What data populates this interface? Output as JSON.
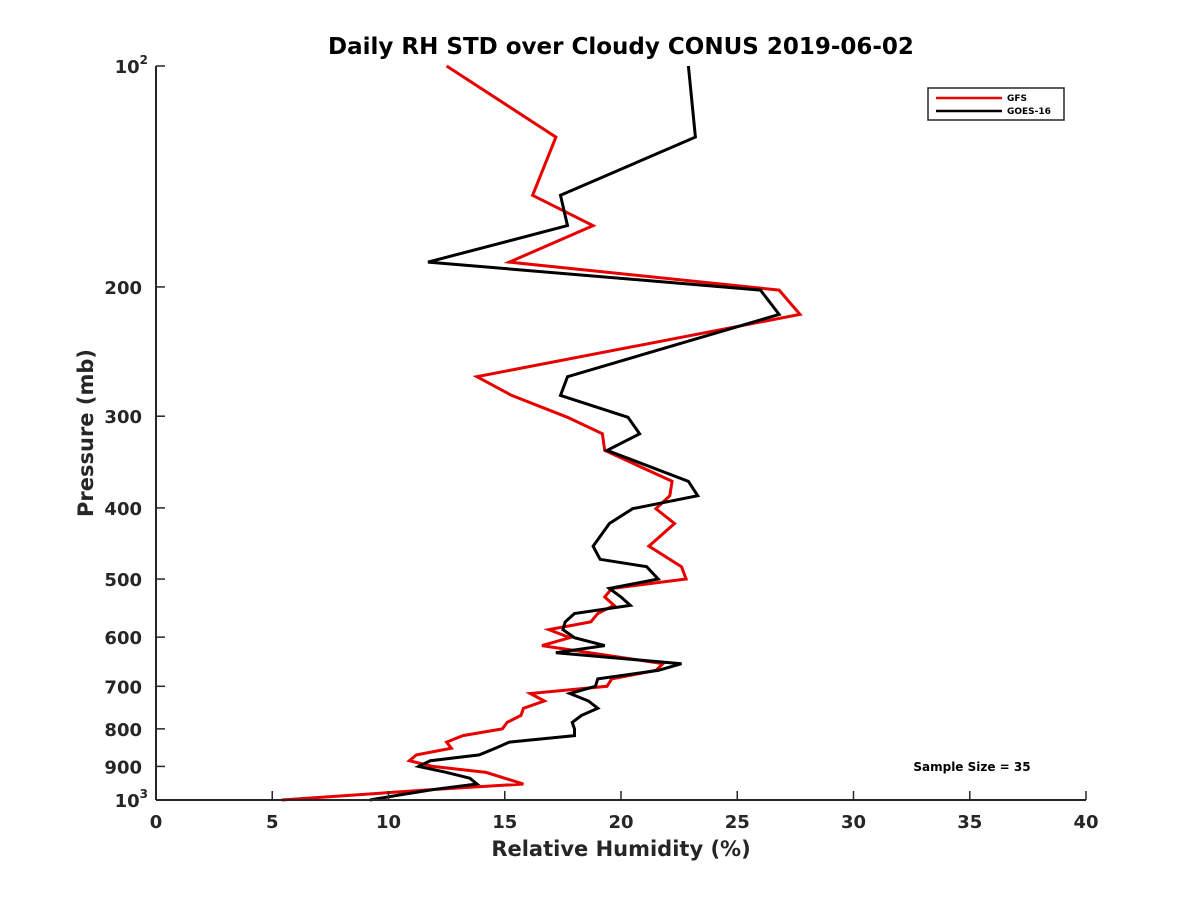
{
  "chart_data": {
    "type": "line",
    "title": "Daily RH STD over Cloudy CONUS 2019-06-02",
    "xlabel": "Relative Humidity (%)",
    "ylabel": "Pressure (mb)",
    "xlim": [
      0,
      40
    ],
    "ylim": [
      100,
      1000
    ],
    "y_scale": "log",
    "y_reversed": true,
    "x_ticks": [
      {
        "value": 0,
        "label": "0"
      },
      {
        "value": 5,
        "label": "5"
      },
      {
        "value": 10,
        "label": "10"
      },
      {
        "value": 15,
        "label": "15"
      },
      {
        "value": 20,
        "label": "20"
      },
      {
        "value": 25,
        "label": "25"
      },
      {
        "value": 30,
        "label": "30"
      },
      {
        "value": 35,
        "label": "35"
      },
      {
        "value": 40,
        "label": "40"
      }
    ],
    "y_ticks": [
      {
        "value": 100,
        "label": "10",
        "sup": "2"
      },
      {
        "value": 200,
        "label": "200"
      },
      {
        "value": 300,
        "label": "300"
      },
      {
        "value": 400,
        "label": "400"
      },
      {
        "value": 500,
        "label": "500"
      },
      {
        "value": 600,
        "label": "600"
      },
      {
        "value": 700,
        "label": "700"
      },
      {
        "value": 800,
        "label": "800"
      },
      {
        "value": 900,
        "label": "900"
      },
      {
        "value": 1000,
        "label": "10",
        "sup": "3"
      }
    ],
    "grid": false,
    "legend_position": "top-right",
    "annotation": "Sample Size = 35",
    "series": [
      {
        "name": "GFS",
        "color": "#e60000",
        "points": [
          [
            12.5,
            100
          ],
          [
            17.2,
            125
          ],
          [
            16.2,
            150
          ],
          [
            18.8,
            165
          ],
          [
            15.2,
            185
          ],
          [
            26.8,
            202
          ],
          [
            27.7,
            218
          ],
          [
            13.8,
            265
          ],
          [
            15.3,
            281
          ],
          [
            17.7,
            301
          ],
          [
            19.2,
            317
          ],
          [
            19.3,
            334
          ],
          [
            22.2,
            368
          ],
          [
            22.1,
            385
          ],
          [
            21.5,
            401
          ],
          [
            22.3,
            420
          ],
          [
            21.2,
            451
          ],
          [
            22.6,
            481
          ],
          [
            22.8,
            500
          ],
          [
            19.6,
            515
          ],
          [
            19.3,
            529
          ],
          [
            19.7,
            543
          ],
          [
            19.0,
            557
          ],
          [
            18.7,
            572
          ],
          [
            16.9,
            586
          ],
          [
            17.8,
            601
          ],
          [
            16.6,
            616
          ],
          [
            21.8,
            652
          ],
          [
            21.5,
            666
          ],
          [
            19.6,
            684
          ],
          [
            19.4,
            700
          ],
          [
            16.1,
            716
          ],
          [
            16.7,
            733
          ],
          [
            15.8,
            750
          ],
          [
            15.7,
            767
          ],
          [
            15.1,
            784
          ],
          [
            14.9,
            800
          ],
          [
            13.2,
            817
          ],
          [
            12.5,
            834
          ],
          [
            12.7,
            850
          ],
          [
            11.2,
            868
          ],
          [
            10.9,
            884
          ],
          [
            11.9,
            900
          ],
          [
            14.2,
            917
          ],
          [
            15.8,
            951
          ],
          [
            12.1,
            967
          ],
          [
            5.4,
            1000
          ]
        ]
      },
      {
        "name": "GOES-16",
        "color": "#000000",
        "points": [
          [
            22.9,
            100
          ],
          [
            23.2,
            125
          ],
          [
            17.4,
            150
          ],
          [
            17.7,
            165
          ],
          [
            11.7,
            185
          ],
          [
            26.0,
            202
          ],
          [
            26.8,
            218
          ],
          [
            17.7,
            265
          ],
          [
            17.4,
            281
          ],
          [
            20.3,
            301
          ],
          [
            20.8,
            317
          ],
          [
            19.4,
            334
          ],
          [
            22.9,
            368
          ],
          [
            23.3,
            385
          ],
          [
            20.5,
            401
          ],
          [
            19.5,
            420
          ],
          [
            18.8,
            451
          ],
          [
            19.1,
            470
          ],
          [
            21.1,
            481
          ],
          [
            21.6,
            500
          ],
          [
            19.5,
            515
          ],
          [
            20.0,
            529
          ],
          [
            20.4,
            543
          ],
          [
            18.0,
            557
          ],
          [
            17.6,
            572
          ],
          [
            17.5,
            586
          ],
          [
            18.0,
            601
          ],
          [
            19.3,
            616
          ],
          [
            17.2,
            630
          ],
          [
            22.6,
            652
          ],
          [
            21.6,
            666
          ],
          [
            19.0,
            684
          ],
          [
            18.9,
            700
          ],
          [
            17.8,
            716
          ],
          [
            18.6,
            733
          ],
          [
            19.0,
            750
          ],
          [
            18.3,
            767
          ],
          [
            17.9,
            784
          ],
          [
            18.0,
            800
          ],
          [
            18.0,
            817
          ],
          [
            15.2,
            834
          ],
          [
            14.6,
            850
          ],
          [
            13.9,
            868
          ],
          [
            11.8,
            884
          ],
          [
            11.3,
            900
          ],
          [
            12.5,
            917
          ],
          [
            13.5,
            934
          ],
          [
            13.8,
            951
          ],
          [
            12.0,
            967
          ],
          [
            10.5,
            984
          ],
          [
            9.2,
            1000
          ]
        ]
      }
    ]
  }
}
